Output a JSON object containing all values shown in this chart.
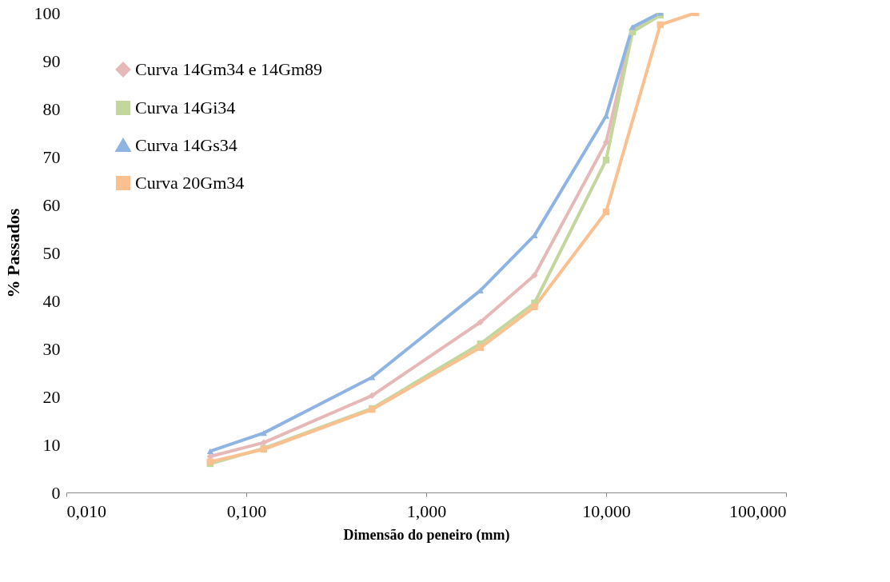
{
  "chart_data": {
    "type": "line",
    "xlabel": "Dimensão do peneiro (mm)",
    "ylabel": "% Passados",
    "log": "x",
    "xlim": [
      0.01,
      100
    ],
    "xticks": [
      {
        "value": 0.01,
        "label": "0,010"
      },
      {
        "value": 0.1,
        "label": "0,100"
      },
      {
        "value": 1,
        "label": "1,000"
      },
      {
        "value": 10,
        "label": "10,000"
      },
      {
        "value": 100,
        "label": "100,000"
      }
    ],
    "ylim": [
      0,
      100
    ],
    "yticks": [
      0,
      10,
      20,
      30,
      40,
      50,
      60,
      70,
      80,
      90,
      100
    ],
    "grid": false,
    "legend": "top left",
    "series": [
      {
        "name": "Curva 14Gm34 e 14Gm89",
        "color": "#e6b9b8",
        "marker": "diamond",
        "x": [
          0.063,
          0.125,
          0.5,
          2,
          4,
          10,
          14,
          20
        ],
        "values": [
          7.5,
          10.4,
          20.2,
          35.5,
          45.3,
          73,
          96.5,
          100
        ]
      },
      {
        "name": " Curva 14Gi34",
        "color": "#c3d69b",
        "marker": "square",
        "x": [
          0.063,
          0.125,
          0.5,
          2,
          4,
          10,
          14,
          20
        ],
        "values": [
          6,
          9.2,
          17.5,
          31,
          39.5,
          69.3,
          96,
          99.5
        ]
      },
      {
        "name": "Curva 14Gs34",
        "color": "#8eb4e3",
        "marker": "triangle",
        "x": [
          0.063,
          0.125,
          0.5,
          2,
          4,
          10,
          14,
          20
        ],
        "values": [
          8.6,
          12.4,
          24,
          42.1,
          53.6,
          78.5,
          97,
          100
        ]
      },
      {
        "name": "Curva 20Gm34",
        "color": "#fac090",
        "marker": "square",
        "x": [
          0.063,
          0.125,
          0.5,
          2,
          4,
          10,
          20,
          31.5
        ],
        "values": [
          6.4,
          9,
          17.3,
          30.2,
          38.7,
          58.5,
          97.5,
          100
        ]
      }
    ]
  }
}
